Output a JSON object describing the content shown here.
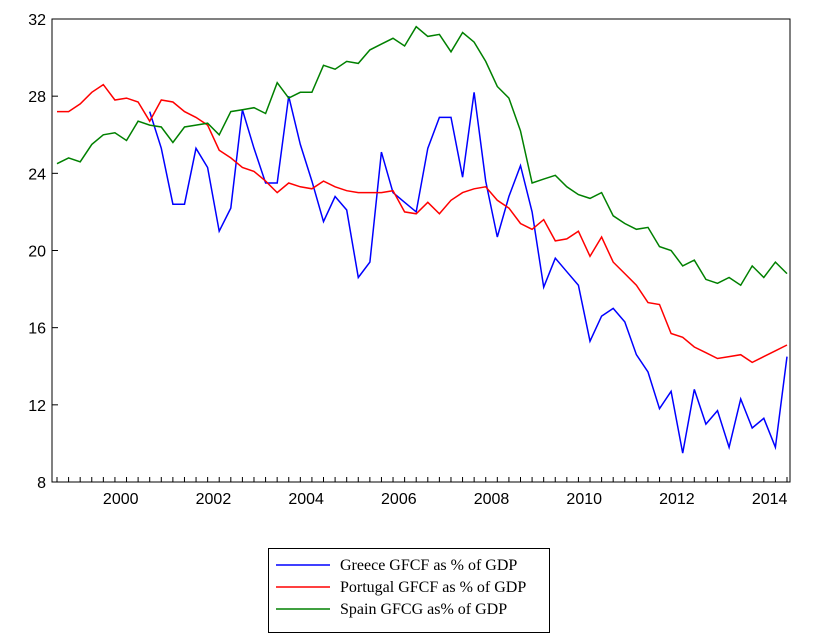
{
  "chart_data": {
    "type": "line",
    "categories": [
      null,
      null,
      null,
      null,
      "2000",
      null,
      null,
      null,
      null,
      null,
      null,
      null,
      "2002",
      null,
      null,
      null,
      null,
      null,
      null,
      null,
      "2004",
      null,
      null,
      null,
      null,
      null,
      null,
      null,
      "2006",
      null,
      null,
      null,
      null,
      null,
      null,
      null,
      "2008",
      null,
      null,
      null,
      null,
      null,
      null,
      null,
      "2010",
      null,
      null,
      null,
      null,
      null,
      null,
      null,
      "2012",
      null,
      null,
      null,
      null,
      null,
      null,
      null,
      "2014",
      null,
      null,
      null
    ],
    "series": [
      {
        "name": "Greece GFCF as % of GDP",
        "color": "#0000ff",
        "values": [
          null,
          null,
          null,
          null,
          null,
          null,
          null,
          null,
          27.2,
          25.3,
          22.4,
          22.4,
          25.3,
          24.3,
          21.0,
          22.2,
          27.3,
          25.3,
          23.5,
          23.5,
          28.0,
          25.5,
          23.6,
          21.5,
          22.8,
          22.1,
          18.6,
          19.4,
          25.1,
          23.0,
          22.5,
          22.0,
          25.3,
          26.9,
          26.9,
          23.8,
          28.2,
          23.6,
          20.7,
          22.8,
          24.4,
          22.0,
          18.1,
          19.6,
          18.9,
          18.2,
          15.3,
          16.6,
          17.0,
          16.3,
          14.6,
          13.7,
          11.8,
          12.7,
          9.5,
          12.8,
          11.0,
          11.7,
          9.8,
          12.3,
          10.8,
          11.3,
          9.8,
          14.5
        ]
      },
      {
        "name": "Portugal GFCF as % of GDP",
        "color": "#ff0000",
        "values": [
          27.2,
          27.2,
          27.6,
          28.2,
          28.6,
          27.8,
          27.9,
          27.7,
          26.7,
          27.8,
          27.7,
          27.2,
          26.9,
          26.5,
          25.2,
          24.8,
          24.3,
          24.1,
          23.6,
          23.0,
          23.5,
          23.3,
          23.2,
          23.6,
          23.3,
          23.1,
          23.0,
          23.0,
          23.0,
          23.1,
          22.0,
          21.9,
          22.5,
          21.9,
          22.6,
          23.0,
          23.2,
          23.3,
          22.6,
          22.2,
          21.4,
          21.1,
          21.6,
          20.5,
          20.6,
          21.0,
          19.7,
          20.7,
          19.4,
          18.8,
          18.2,
          17.3,
          17.2,
          15.7,
          15.5,
          15.0,
          14.7,
          14.4,
          14.5,
          14.6,
          14.2,
          14.5,
          14.8,
          15.1
        ]
      },
      {
        "name": "Spain GFCG as% of GDP",
        "color": "#008000",
        "values": [
          24.5,
          24.8,
          24.6,
          25.5,
          26.0,
          26.1,
          25.7,
          26.7,
          26.5,
          26.4,
          25.6,
          26.4,
          26.5,
          26.6,
          26.0,
          27.2,
          27.3,
          27.4,
          27.1,
          28.7,
          27.9,
          28.2,
          28.2,
          29.6,
          29.4,
          29.8,
          29.7,
          30.4,
          30.7,
          31.0,
          30.6,
          31.6,
          31.1,
          31.2,
          30.3,
          31.3,
          30.8,
          29.8,
          28.5,
          27.9,
          26.2,
          23.5,
          23.7,
          23.9,
          23.3,
          22.9,
          22.7,
          23.0,
          21.8,
          21.4,
          21.1,
          21.2,
          20.2,
          20.0,
          19.2,
          19.5,
          18.5,
          18.3,
          18.6,
          18.2,
          19.2,
          18.6,
          19.4,
          18.8
        ]
      }
    ],
    "ylim": [
      8,
      32
    ],
    "yticks": [
      8,
      12,
      16,
      20,
      24,
      28,
      32
    ],
    "grid": false
  }
}
